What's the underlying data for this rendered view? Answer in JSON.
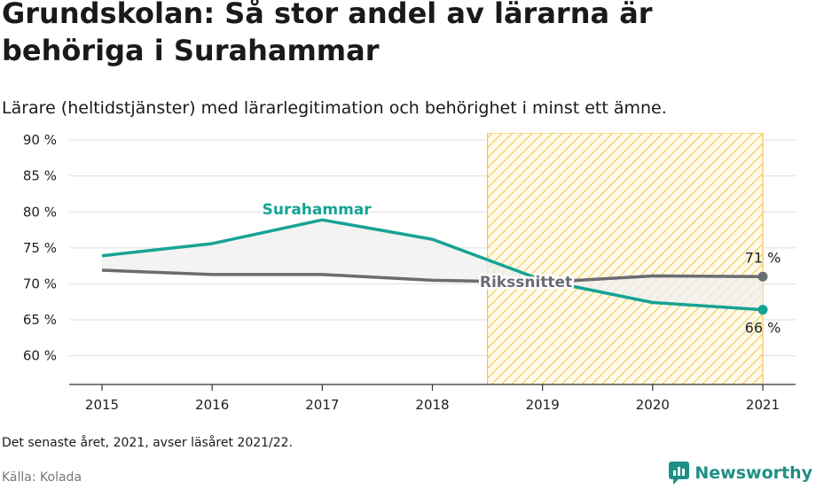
{
  "header": {
    "title": "Grundskolan: Så stor andel av lärarna är behöriga i Surahammar",
    "subtitle": "Lärare (heltidstjänster) med lärarlegitimation och behörighet i minst ett ämne."
  },
  "footer": {
    "note": "Det senaste året, 2021, avser läsåret 2021/22.",
    "source": "Källa: Kolada",
    "brand": "Newsworthy"
  },
  "colors": {
    "surahammar": "#16a394",
    "rikssnittet": "#6b6b72",
    "highlight": "#f3c64c",
    "brand": "#1f8f84"
  },
  "chart_data": {
    "type": "line",
    "x": [
      2015,
      2016,
      2017,
      2018,
      2019,
      2020,
      2021
    ],
    "ylim": [
      56,
      91
    ],
    "yticks": [
      60,
      65,
      70,
      75,
      80,
      85,
      90
    ],
    "ytick_labels": [
      "60 %",
      "65 %",
      "70 %",
      "75 %",
      "80 %",
      "85 %",
      "90 %"
    ],
    "xtick_labels": [
      "2015",
      "2016",
      "2017",
      "2018",
      "2019",
      "2020",
      "2021"
    ],
    "grid": true,
    "highlight_range": [
      2018.5,
      2021
    ],
    "series": [
      {
        "name": "Surahammar",
        "values": [
          73.9,
          75.6,
          78.9,
          76.2,
          70.5,
          67.4,
          66.4
        ]
      },
      {
        "name": "Rikssnittet",
        "values": [
          71.9,
          71.3,
          71.3,
          70.5,
          70.2,
          71.1,
          71.0
        ]
      }
    ],
    "end_labels": {
      "Surahammar": "66 %",
      "Rikssnittet": "71 %"
    }
  }
}
